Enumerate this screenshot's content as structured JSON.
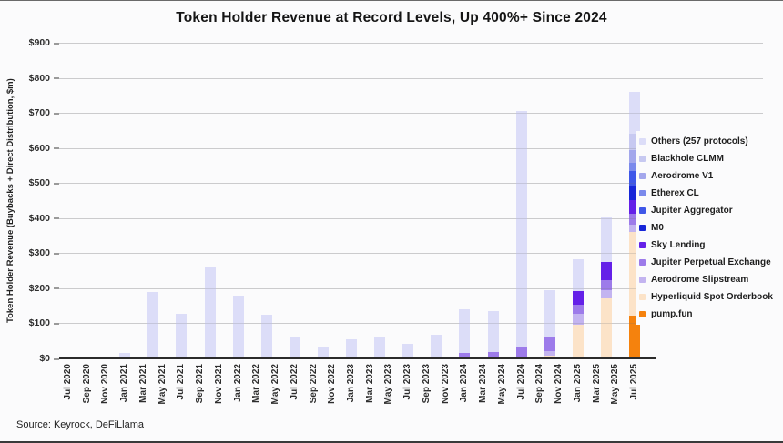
{
  "page": {
    "title": "Token Holder Revenue at Record Levels, Up 400%+ Since 2024",
    "source": "Source: Keyrock, DeFiLlama"
  },
  "chart_data": {
    "type": "bar",
    "stacked": true,
    "title": "Token Holder Revenue at Record Levels, Up 400%+ Since 2024",
    "xlabel": "",
    "ylabel": "Token Holder Revenue (Buybacks + Direct Distribution, $m)",
    "ylim": [
      0,
      900
    ],
    "ytick_values": [
      0,
      100,
      200,
      300,
      400,
      500,
      600,
      700,
      800,
      900
    ],
    "ytick_labels": [
      "$0",
      "$100",
      "$200",
      "$300",
      "$400",
      "$500",
      "$600",
      "$700",
      "$800",
      "$900"
    ],
    "grid": "horizontal",
    "legend_position": "right",
    "xtick_labels": [
      "Jul 2020",
      "Sep 2020",
      "Nov 2020",
      "Jan 2021",
      "Mar 2021",
      "May 2021",
      "Jul 2021",
      "Sep 2021",
      "Nov 2021",
      "Jan 2022",
      "Mar 2022",
      "May 2022",
      "Jul 2022",
      "Sep 2022",
      "Nov 2022",
      "Jan 2023",
      "Mar 2023",
      "May 2023",
      "Jul 2023",
      "Sep 2023",
      "Nov 2023",
      "Jan 2024",
      "Mar 2024",
      "May 2024",
      "Jul 2024",
      "Sep 2024",
      "Nov 2024",
      "Jan 2025",
      "Mar 2025",
      "May 2025",
      "Jul 2025"
    ],
    "xtick_month_offsets": [
      0,
      2,
      4,
      6,
      8,
      10,
      12,
      14,
      16,
      18,
      20,
      22,
      24,
      26,
      28,
      30,
      32,
      34,
      36,
      38,
      40,
      42,
      44,
      46,
      48,
      50,
      52,
      54,
      56,
      58,
      60
    ],
    "categories": [
      "Jul 2020",
      "Oct 2020",
      "Jan 2021",
      "Apr 2021",
      "Jul 2021",
      "Oct 2021",
      "Jan 2022",
      "Apr 2022",
      "Jul 2022",
      "Oct 2022",
      "Jan 2023",
      "Apr 2023",
      "Jul 2023",
      "Oct 2023",
      "Jan 2024",
      "Apr 2024",
      "Jul 2024",
      "Oct 2024",
      "Jan 2025",
      "Apr 2025",
      "Jul 2025"
    ],
    "category_month_offsets": [
      0,
      3,
      6,
      9,
      12,
      15,
      18,
      21,
      24,
      27,
      30,
      33,
      36,
      39,
      42,
      45,
      48,
      51,
      54,
      57,
      60
    ],
    "units": "$m",
    "series": [
      {
        "name": "Others (257 protocols)",
        "color": "#dcddf8",
        "values": [
          1,
          2,
          15,
          190,
          126,
          262,
          180,
          124,
          63,
          30,
          55,
          62,
          42,
          68,
          125,
          117,
          675,
          135,
          91,
          127,
          120
        ]
      },
      {
        "name": "Blackhole CLMM",
        "color": "#c7c9f1",
        "values": [
          0,
          0,
          0,
          0,
          0,
          0,
          0,
          0,
          0,
          0,
          0,
          0,
          0,
          0,
          0,
          0,
          0,
          0,
          0,
          0,
          47
        ]
      },
      {
        "name": "Aerodrome V1",
        "color": "#a3a7ec",
        "values": [
          0,
          0,
          0,
          0,
          0,
          0,
          0,
          0,
          0,
          0,
          0,
          0,
          0,
          0,
          0,
          0,
          0,
          0,
          0,
          0,
          35
        ]
      },
      {
        "name": "Etherex CL",
        "color": "#7b8aec",
        "values": [
          0,
          0,
          0,
          0,
          0,
          0,
          0,
          0,
          0,
          0,
          0,
          0,
          0,
          0,
          0,
          0,
          0,
          0,
          0,
          0,
          25
        ]
      },
      {
        "name": "Jupiter Aggregator",
        "color": "#3f57e8",
        "values": [
          0,
          0,
          0,
          0,
          0,
          0,
          0,
          0,
          0,
          0,
          0,
          0,
          0,
          0,
          0,
          0,
          0,
          0,
          0,
          0,
          43
        ]
      },
      {
        "name": "M0",
        "color": "#1726d8",
        "values": [
          0,
          0,
          0,
          0,
          0,
          0,
          0,
          0,
          0,
          0,
          0,
          0,
          0,
          0,
          0,
          0,
          0,
          0,
          0,
          0,
          39
        ]
      },
      {
        "name": "Sky Lending",
        "color": "#6420e8",
        "values": [
          0,
          0,
          0,
          0,
          0,
          0,
          0,
          0,
          0,
          0,
          0,
          0,
          0,
          0,
          0,
          0,
          0,
          0,
          39,
          52,
          39
        ]
      },
      {
        "name": "Jupiter Perpetual Exchange",
        "color": "#9d7bea",
        "values": [
          0,
          0,
          0,
          0,
          0,
          0,
          0,
          0,
          0,
          0,
          0,
          0,
          0,
          0,
          12,
          14,
          25,
          40,
          26,
          28,
          31
        ]
      },
      {
        "name": "Aerodrome Slipstream",
        "color": "#c3b4f0",
        "values": [
          0,
          0,
          0,
          0,
          0,
          0,
          0,
          0,
          0,
          0,
          0,
          0,
          0,
          0,
          3,
          4,
          5,
          12,
          31,
          24,
          21
        ]
      },
      {
        "name": "Hyperliquid Spot Orderbook",
        "color": "#fce3c8",
        "values": [
          0,
          0,
          0,
          0,
          0,
          0,
          0,
          0,
          0,
          0,
          0,
          0,
          0,
          0,
          0,
          0,
          0,
          8,
          96,
          170,
          238
        ]
      },
      {
        "name": "pump.fun",
        "color": "#f5820d",
        "values": [
          0,
          0,
          0,
          0,
          0,
          0,
          0,
          0,
          0,
          0,
          0,
          0,
          0,
          0,
          0,
          0,
          0,
          0,
          0,
          0,
          122
        ]
      }
    ]
  }
}
